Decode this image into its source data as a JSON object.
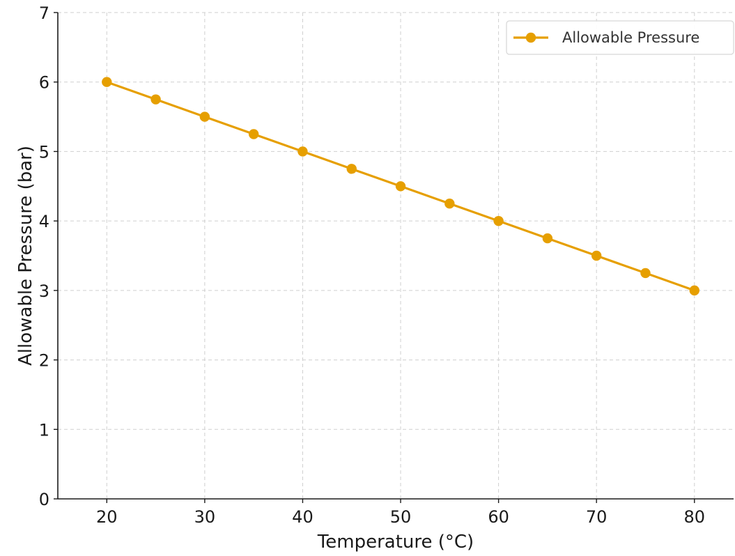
{
  "chart_data": {
    "type": "line",
    "title": "",
    "xlabel": "Temperature (°C)",
    "ylabel": "Allowable Pressure (bar)",
    "xlim": [
      15,
      84
    ],
    "ylim": [
      0,
      7
    ],
    "x_ticks": [
      20,
      30,
      40,
      50,
      60,
      70,
      80
    ],
    "y_ticks": [
      0,
      1,
      2,
      3,
      4,
      5,
      6,
      7
    ],
    "grid": true,
    "legend_position": "top-right",
    "x": [
      20,
      25,
      30,
      35,
      40,
      45,
      50,
      55,
      60,
      65,
      70,
      75,
      80
    ],
    "series": [
      {
        "name": "Allowable Pressure",
        "color": "#E69F00",
        "marker": "circle",
        "values": [
          6.0,
          5.75,
          5.5,
          5.25,
          5.0,
          4.75,
          4.5,
          4.25,
          4.0,
          3.75,
          3.5,
          3.25,
          3.0
        ]
      }
    ]
  }
}
